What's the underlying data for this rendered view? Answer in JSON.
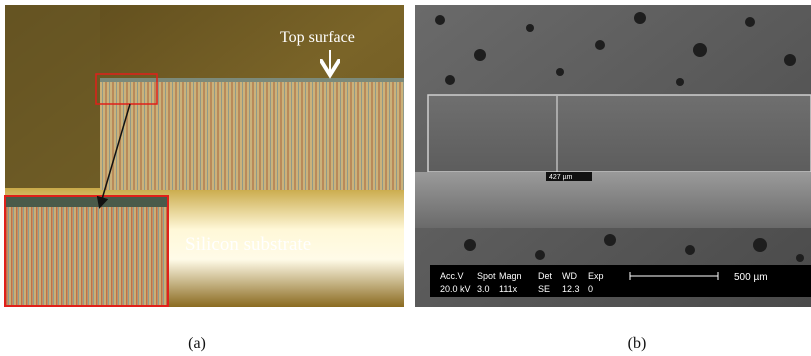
{
  "panels": [
    {
      "label": "(a)",
      "annotations": [
        "Top surface",
        "Silicon substrate"
      ]
    },
    {
      "label": "(b)",
      "measurement": "427 µm",
      "scale_bar": "500 µm",
      "info_headers": [
        "Acc.V",
        "Spot",
        "Magn",
        "Det",
        "WD",
        "Exp"
      ],
      "info_values": [
        "20.0 kV",
        "3.0",
        "111x",
        "SE",
        "12.3",
        "0"
      ]
    }
  ]
}
